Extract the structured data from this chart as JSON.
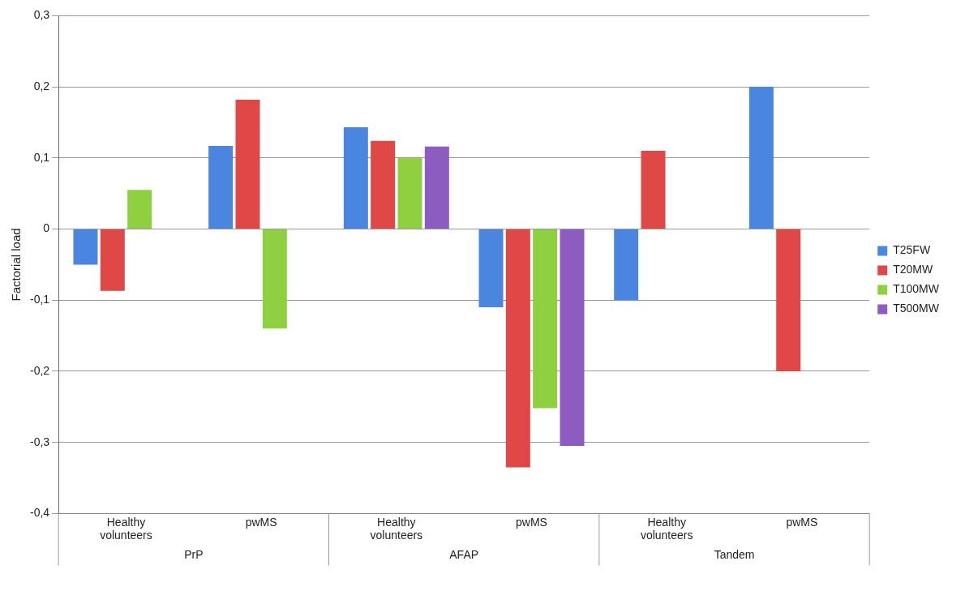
{
  "chart_data": {
    "type": "bar",
    "ylabel": "Factorial load",
    "categories": [
      "Healthy volunteers",
      "pwMS",
      "Healthy volunteers",
      "pwMS",
      "Healthy volunteers",
      "pwMS"
    ],
    "annotations": [
      "PrP",
      "AFAP",
      "Tandem"
    ],
    "series": [
      {
        "name": "T25FW",
        "color": "#4a86e0",
        "values": [
          -0.05,
          0.117,
          0.143,
          -0.11,
          -0.1,
          0.2
        ]
      },
      {
        "name": "T20MW",
        "color": "#e04848",
        "values": [
          -0.087,
          0.182,
          0.124,
          -0.335,
          0.11,
          -0.2
        ]
      },
      {
        "name": "T100MW",
        "color": "#8fd040",
        "values": [
          0.055,
          -0.14,
          0.1,
          -0.252,
          null,
          null
        ]
      },
      {
        "name": "T500MW",
        "color": "#8c5cc0",
        "values": [
          null,
          null,
          0.116,
          -0.305,
          null,
          null
        ]
      }
    ],
    "ylim": [
      -0.4,
      0.3
    ],
    "yticks": [
      {
        "value": -0.4,
        "label": "-0,4"
      },
      {
        "value": -0.3,
        "label": "-0,3"
      },
      {
        "value": -0.2,
        "label": "-0,2"
      },
      {
        "value": -0.1,
        "label": "-0,1"
      },
      0,
      {
        "value": 0.1,
        "label": "0,1"
      },
      {
        "value": 0.2,
        "label": "0,2"
      },
      {
        "value": 0.3,
        "label": "0,3"
      }
    ],
    "grid": "y",
    "legend": "right"
  }
}
